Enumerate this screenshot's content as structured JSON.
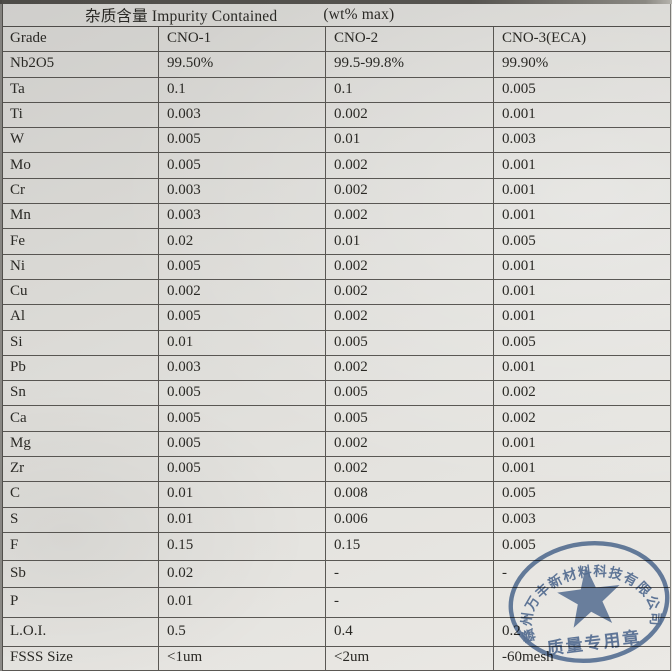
{
  "title": {
    "heading": "杂质含量 Impurity Contained",
    "unit": "(wt% max)"
  },
  "table": {
    "columns": [
      "Grade",
      "CNO-1",
      "CNO-2",
      "CNO-3(ECA)"
    ],
    "rows": [
      [
        "Nb2O5",
        "99.50%",
        "99.5-99.8%",
        "99.90%"
      ],
      [
        "Ta",
        "0.1",
        "0.1",
        "0.005"
      ],
      [
        "Ti",
        "0.003",
        "0.002",
        "0.001"
      ],
      [
        "W",
        "0.005",
        "0.01",
        "0.003"
      ],
      [
        "Mo",
        "0.005",
        "0.002",
        "0.001"
      ],
      [
        "Cr",
        "0.003",
        "0.002",
        "0.001"
      ],
      [
        "Mn",
        "0.003",
        "0.002",
        "0.001"
      ],
      [
        "Fe",
        "0.02",
        "0.01",
        "0.005"
      ],
      [
        "Ni",
        "0.005",
        "0.002",
        "0.001"
      ],
      [
        "Cu",
        "0.002",
        "0.002",
        "0.001"
      ],
      [
        "Al",
        "0.005",
        "0.002",
        "0.001"
      ],
      [
        "Si",
        "0.01",
        "0.005",
        "0.005"
      ],
      [
        "Pb",
        "0.003",
        "0.002",
        "0.001"
      ],
      [
        "Sn",
        "0.005",
        "0.005",
        "0.002"
      ],
      [
        "Ca",
        "0.005",
        "0.005",
        "0.002"
      ],
      [
        "Mg",
        "0.005",
        "0.002",
        "0.001"
      ],
      [
        "Zr",
        "0.005",
        "0.002",
        "0.001"
      ],
      [
        "C",
        "0.01",
        "0.008",
        "0.005"
      ],
      [
        "S",
        "0.01",
        "0.006",
        "0.003"
      ],
      [
        "F",
        "0.15",
        "0.15",
        "0.005"
      ],
      [
        "Sb",
        "0.02",
        "-",
        "-"
      ],
      [
        "P",
        "0.01",
        "-",
        ""
      ],
      [
        "L.O.I.",
        "0.5",
        "0.4",
        "0.2"
      ],
      [
        "FSSS Size",
        "<1um",
        "<2um",
        "-60mesh"
      ]
    ]
  },
  "stamp": {
    "company": "赣州万丰新材料科技有限公司",
    "label": "质量专用章",
    "color": "#3b5d90",
    "star_icon": "star"
  }
}
